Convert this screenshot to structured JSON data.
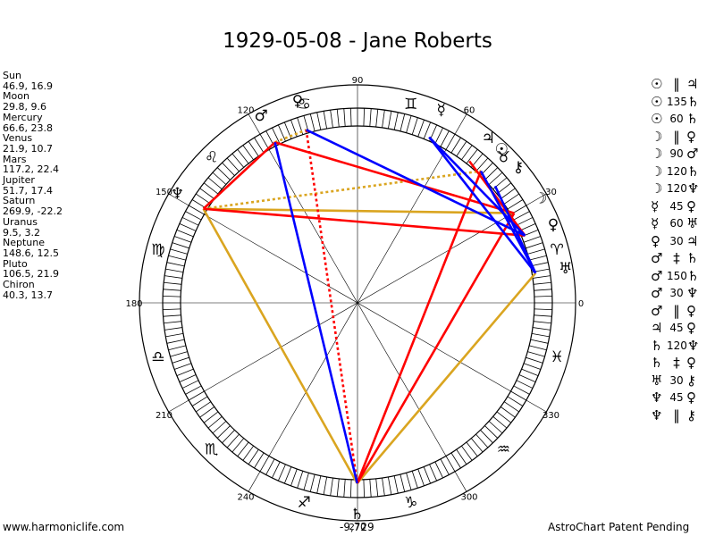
{
  "title": "1929-05-08 - Jane Roberts",
  "footer_left": "www.harmoniclife.com",
  "footer_right": "AstroChart Patent Pending",
  "footer_center": "-9,729",
  "planets": [
    {
      "name": "Sun",
      "values": "46.9, 16.9"
    },
    {
      "name": "Moon",
      "values": "29.8, 9.6"
    },
    {
      "name": "Mercury",
      "values": "66.6, 23.8"
    },
    {
      "name": "Venus",
      "values": "21.9, 10.7"
    },
    {
      "name": "Mars",
      "values": "117.2, 22.4"
    },
    {
      "name": "Jupiter",
      "values": "51.7, 17.4"
    },
    {
      "name": "Saturn",
      "values": "269.9, -22.2"
    },
    {
      "name": "Uranus",
      "values": "9.5, 3.2"
    },
    {
      "name": "Neptune",
      "values": "148.6, 12.5"
    },
    {
      "name": "Pluto",
      "values": "106.5, 21.9"
    },
    {
      "name": "Chiron",
      "values": "40.3, 13.7"
    }
  ],
  "aspects": [
    {
      "p1": "☉",
      "asp": "‖",
      "p2": "♃"
    },
    {
      "p1": "☉",
      "asp": "135",
      "p2": "♄"
    },
    {
      "p1": "☉",
      "asp": "60",
      "p2": "♄"
    },
    {
      "p1": "☽",
      "asp": "‖",
      "p2": "♀"
    },
    {
      "p1": "☽",
      "asp": "90",
      "p2": "♂"
    },
    {
      "p1": "☽",
      "asp": "120",
      "p2": "♄"
    },
    {
      "p1": "☽",
      "asp": "120",
      "p2": "♆"
    },
    {
      "p1": "☿",
      "asp": "45",
      "p2": "♀"
    },
    {
      "p1": "☿",
      "asp": "60",
      "p2": "♅"
    },
    {
      "p1": "♀",
      "asp": "30",
      "p2": "♃"
    },
    {
      "p1": "♂",
      "asp": "‡",
      "p2": "♄"
    },
    {
      "p1": "♂",
      "asp": "150",
      "p2": "♄"
    },
    {
      "p1": "♂",
      "asp": "30",
      "p2": "♆"
    },
    {
      "p1": "♂",
      "asp": "‖",
      "p2": "♀"
    },
    {
      "p1": "♃",
      "asp": "45",
      "p2": "♀"
    },
    {
      "p1": "♄",
      "asp": "120",
      "p2": "♆"
    },
    {
      "p1": "♄",
      "asp": "‡",
      "p2": "♀"
    },
    {
      "p1": "♅",
      "asp": "30",
      "p2": "⚷"
    },
    {
      "p1": "♆",
      "asp": "45",
      "p2": "♀"
    },
    {
      "p1": "♆",
      "asp": "‖",
      "p2": "⚷"
    }
  ],
  "degree_labels": [
    {
      "deg": 0,
      "text": "0"
    },
    {
      "deg": 30,
      "text": "30"
    },
    {
      "deg": 60,
      "text": "60"
    },
    {
      "deg": 90,
      "text": "90"
    },
    {
      "deg": 120,
      "text": "120"
    },
    {
      "deg": 150,
      "text": "150"
    },
    {
      "deg": 180,
      "text": "180"
    },
    {
      "deg": 210,
      "text": "210"
    },
    {
      "deg": 240,
      "text": "240"
    },
    {
      "deg": 270,
      "text": "270"
    },
    {
      "deg": 300,
      "text": "300"
    },
    {
      "deg": 330,
      "text": "330"
    }
  ],
  "zodiac_signs": [
    {
      "deg": 15,
      "glyph": "♈"
    },
    {
      "deg": 45,
      "glyph": "♉"
    },
    {
      "deg": 75,
      "glyph": "♊"
    },
    {
      "deg": 105,
      "glyph": "♋"
    },
    {
      "deg": 135,
      "glyph": "♌"
    },
    {
      "deg": 165,
      "glyph": "♍"
    },
    {
      "deg": 195,
      "glyph": "♎"
    },
    {
      "deg": 225,
      "glyph": "♏"
    },
    {
      "deg": 255,
      "glyph": "♐"
    },
    {
      "deg": 285,
      "glyph": "♑"
    },
    {
      "deg": 315,
      "glyph": "♒"
    },
    {
      "deg": 345,
      "glyph": "♓"
    }
  ],
  "planet_glyphs": [
    {
      "key": "sun",
      "glyph": "☉",
      "deg": 46.9
    },
    {
      "key": "moon",
      "glyph": "☽",
      "deg": 29.8
    },
    {
      "key": "mercury",
      "glyph": "☿",
      "deg": 66.6
    },
    {
      "key": "venus",
      "glyph": "♀",
      "deg": 21.9
    },
    {
      "key": "mars",
      "glyph": "♂",
      "deg": 117.2
    },
    {
      "key": "jupiter",
      "glyph": "♃",
      "deg": 51.7
    },
    {
      "key": "saturn",
      "glyph": "♄",
      "deg": 269.9
    },
    {
      "key": "uranus",
      "glyph": "♅",
      "deg": 9.5
    },
    {
      "key": "neptune",
      "glyph": "♆",
      "deg": 148.6
    },
    {
      "key": "pluto",
      "glyph": "♀",
      "deg": 106.5
    },
    {
      "key": "chiron",
      "glyph": "⚷",
      "deg": 40.3
    }
  ],
  "aspect_lines": [
    {
      "from": "neptune",
      "to": "saturn",
      "color": "#daa520",
      "style": "solid"
    },
    {
      "from": "uranus",
      "to": "saturn",
      "color": "#daa520",
      "style": "solid"
    },
    {
      "from": "neptune",
      "to": "moon",
      "color": "#daa520",
      "style": "solid"
    },
    {
      "from": "neptune",
      "to": "sun",
      "color": "#daa520",
      "style": "dotted"
    },
    {
      "from": "mars",
      "to": "pluto",
      "color": "#daa520",
      "style": "dotted"
    },
    {
      "from": "moon",
      "to": "saturn",
      "color": "#ff0000",
      "style": "solid"
    },
    {
      "from": "sun",
      "to": "saturn",
      "color": "#ff0000",
      "style": "solid"
    },
    {
      "from": "mars",
      "to": "moon",
      "color": "#ff0000",
      "style": "solid"
    },
    {
      "from": "mars",
      "to": "neptune",
      "color": "#ff0000",
      "style": "solid"
    },
    {
      "from": "jupiter",
      "to": "venus",
      "color": "#ff0000",
      "style": "solid"
    },
    {
      "from": "neptune",
      "to": "venus",
      "color": "#ff0000",
      "style": "solid"
    },
    {
      "from": "pluto",
      "to": "saturn",
      "color": "#ff0000",
      "style": "dotted"
    },
    {
      "from": "mars",
      "to": "saturn",
      "color": "#0000ff",
      "style": "solid"
    },
    {
      "from": "pluto",
      "to": "venus",
      "color": "#0000ff",
      "style": "solid"
    },
    {
      "from": "mercury",
      "to": "uranus",
      "color": "#0000ff",
      "style": "solid"
    },
    {
      "from": "mercury",
      "to": "venus",
      "color": "#0000ff",
      "style": "solid"
    },
    {
      "from": "sun",
      "to": "uranus",
      "color": "#0000ff",
      "style": "solid"
    },
    {
      "from": "chiron",
      "to": "uranus",
      "color": "#0000ff",
      "style": "solid"
    }
  ],
  "colors": {
    "soft": "#daa520",
    "hard": "#ff0000",
    "minor": "#0000ff",
    "ring": "#000000"
  }
}
